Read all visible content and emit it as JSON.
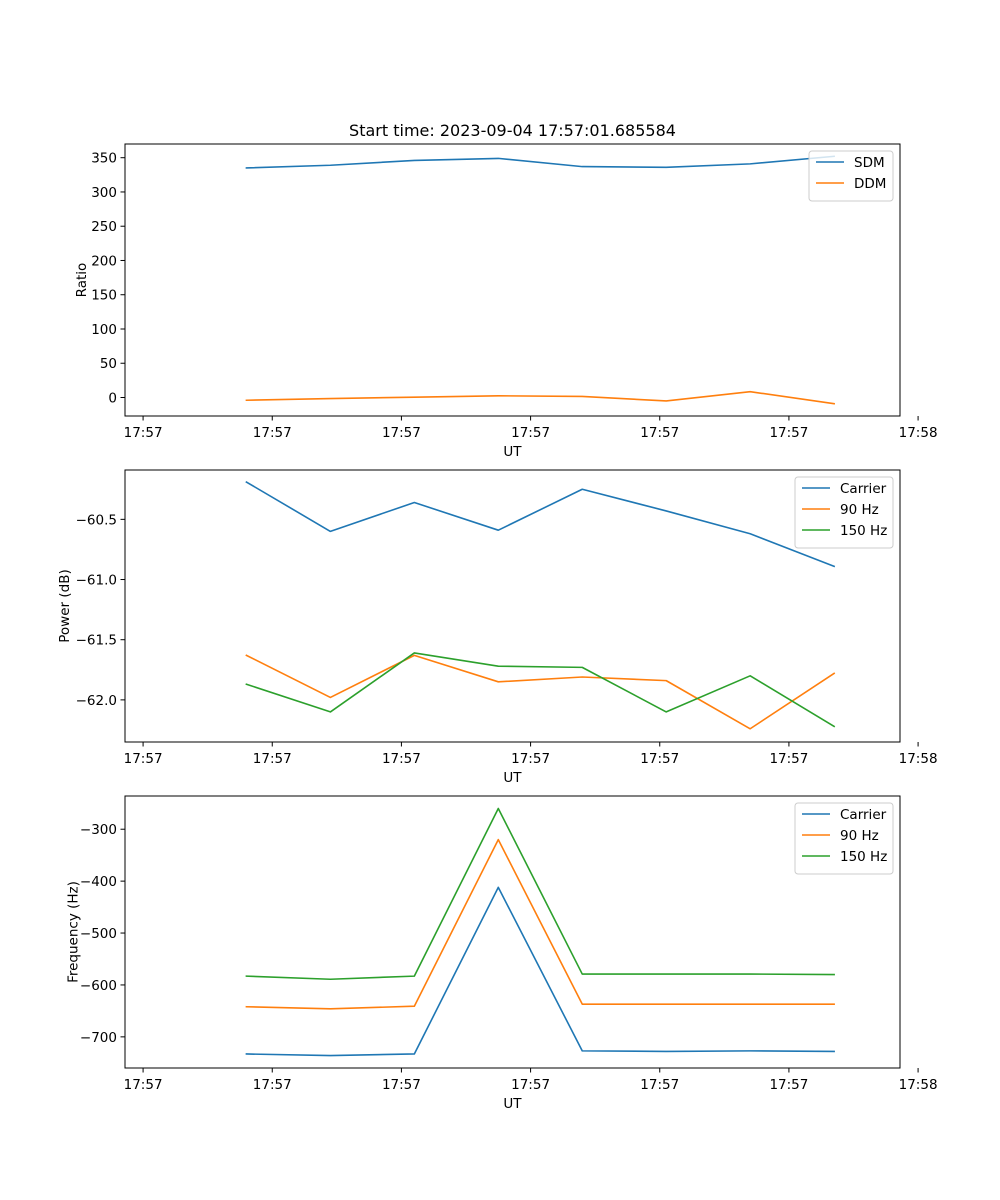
{
  "chart_data": [
    {
      "type": "line",
      "title": "Start time: 2023-09-04 17:57:01.685584",
      "xlabel": "UT",
      "ylabel": "Ratio",
      "x": [
        0.8,
        1.45,
        2.1,
        2.75,
        3.4,
        4.05,
        4.7,
        5.35
      ],
      "xlim": [
        -0.14,
        5.86
      ],
      "xticks": [
        0,
        1,
        2,
        3,
        4,
        5,
        6
      ],
      "xtick_labels": [
        "17:57",
        "17:57",
        "17:57",
        "17:57",
        "17:57",
        "17:57",
        "17:58"
      ],
      "ylim": [
        -27,
        370
      ],
      "yticks": [
        0,
        50,
        100,
        150,
        200,
        250,
        300,
        350
      ],
      "ytick_labels": [
        "0",
        "50",
        "100",
        "150",
        "200",
        "250",
        "300",
        "350"
      ],
      "legend": "top-right",
      "series": [
        {
          "name": "SDM",
          "color": "#1f77b4",
          "values": [
            335,
            339,
            346,
            349,
            337,
            336,
            341,
            352
          ]
        },
        {
          "name": "DDM",
          "color": "#ff7f0e",
          "values": [
            -4,
            -1.5,
            0.5,
            2.5,
            1.5,
            -5,
            8.5,
            -9
          ]
        }
      ]
    },
    {
      "type": "line",
      "title": "",
      "xlabel": "UT",
      "ylabel": "Power (dB)",
      "x": [
        0.8,
        1.45,
        2.1,
        2.75,
        3.4,
        4.05,
        4.7,
        5.35
      ],
      "xlim": [
        -0.14,
        5.86
      ],
      "xticks": [
        0,
        1,
        2,
        3,
        4,
        5,
        6
      ],
      "xtick_labels": [
        "17:57",
        "17:57",
        "17:57",
        "17:57",
        "17:57",
        "17:57",
        "17:58"
      ],
      "ylim": [
        -62.35,
        -60.09
      ],
      "yticks": [
        -60.5,
        -61.0,
        -61.5,
        -62.0
      ],
      "ytick_labels": [
        "−60.5",
        "−61.0",
        "−61.5",
        "−62.0"
      ],
      "legend": "top-right",
      "series": [
        {
          "name": "Carrier",
          "color": "#1f77b4",
          "values": [
            -60.19,
            -60.6,
            -60.36,
            -60.59,
            -60.25,
            -60.43,
            -60.62,
            -60.89
          ]
        },
        {
          "name": "90 Hz",
          "color": "#ff7f0e",
          "values": [
            -61.63,
            -61.98,
            -61.63,
            -61.85,
            -61.81,
            -61.84,
            -62.24,
            -61.78
          ]
        },
        {
          "name": "150 Hz",
          "color": "#2ca02c",
          "values": [
            -61.87,
            -62.1,
            -61.61,
            -61.72,
            -61.73,
            -62.1,
            -61.8,
            -62.22
          ]
        }
      ]
    },
    {
      "type": "line",
      "title": "",
      "xlabel": "UT",
      "ylabel": "Frequency (Hz)",
      "x": [
        0.8,
        1.45,
        2.1,
        2.75,
        3.4,
        4.05,
        4.7,
        5.35
      ],
      "xlim": [
        -0.14,
        5.86
      ],
      "xticks": [
        0,
        1,
        2,
        3,
        4,
        5,
        6
      ],
      "xtick_labels": [
        "17:57",
        "17:57",
        "17:57",
        "17:57",
        "17:57",
        "17:57",
        "17:58"
      ],
      "ylim": [
        -760,
        -236
      ],
      "yticks": [
        -300,
        -400,
        -500,
        -600,
        -700
      ],
      "ytick_labels": [
        "−300",
        "−400",
        "−500",
        "−600",
        "−700"
      ],
      "legend": "top-right",
      "series": [
        {
          "name": "Carrier",
          "color": "#1f77b4",
          "values": [
            -733,
            -736,
            -733,
            -412,
            -727,
            -728,
            -727,
            -728
          ]
        },
        {
          "name": "90 Hz",
          "color": "#ff7f0e",
          "values": [
            -642,
            -646,
            -641,
            -320,
            -637,
            -637,
            -637,
            -637
          ]
        },
        {
          "name": "150 Hz",
          "color": "#2ca02c",
          "values": [
            -583,
            -589,
            -583,
            -260,
            -579,
            -579,
            -579,
            -580
          ]
        }
      ]
    }
  ]
}
